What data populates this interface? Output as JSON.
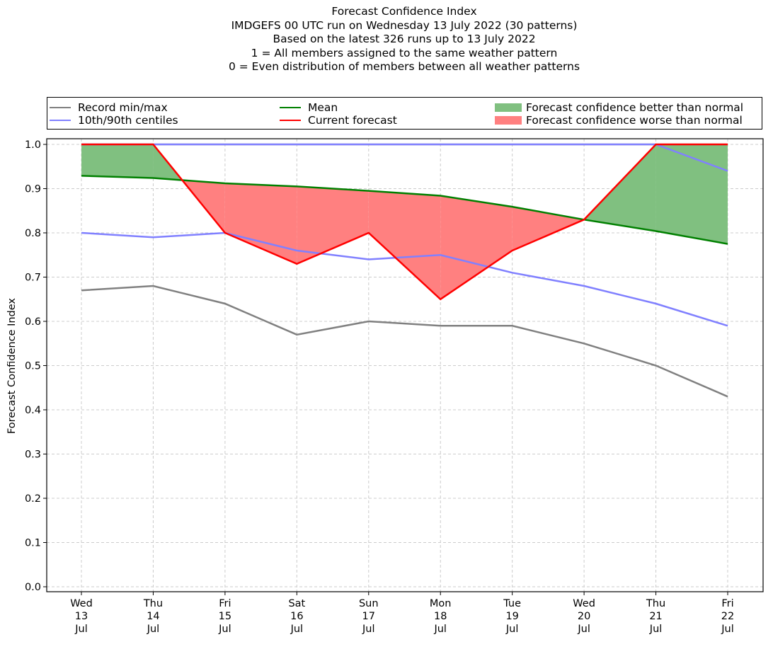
{
  "chart_data": {
    "type": "line",
    "title_lines": [
      "Forecast Confidence Index",
      "IMDGEFS 00 UTC run on Wednesday 13 July 2022 (30 patterns)",
      "Based on the latest 326 runs up to 13 July 2022",
      "1 = All members assigned to the same weather pattern",
      "0 = Even distribution of members between all weather patterns"
    ],
    "xlabel": "",
    "ylabel": "Forecast Confidence Index",
    "ylim": [
      0.0,
      1.0
    ],
    "yticks": [
      "0.0",
      "0.1",
      "0.2",
      "0.3",
      "0.4",
      "0.5",
      "0.6",
      "0.7",
      "0.8",
      "0.9",
      "1.0"
    ],
    "grid": true,
    "legend_placement": "top (above plot, 3 columns)",
    "categories": [
      {
        "day": "Wed",
        "date": "13",
        "month": "Jul"
      },
      {
        "day": "Thu",
        "date": "14",
        "month": "Jul"
      },
      {
        "day": "Fri",
        "date": "15",
        "month": "Jul"
      },
      {
        "day": "Sat",
        "date": "16",
        "month": "Jul"
      },
      {
        "day": "Sun",
        "date": "17",
        "month": "Jul"
      },
      {
        "day": "Mon",
        "date": "18",
        "month": "Jul"
      },
      {
        "day": "Tue",
        "date": "19",
        "month": "Jul"
      },
      {
        "day": "Wed",
        "date": "20",
        "month": "Jul"
      },
      {
        "day": "Thu",
        "date": "21",
        "month": "Jul"
      },
      {
        "day": "Fri",
        "date": "22",
        "month": "Jul"
      }
    ],
    "series": [
      {
        "name": "Record min",
        "legend_label": "Record min/max",
        "color": "#808080",
        "values": [
          0.67,
          0.68,
          0.64,
          0.57,
          0.6,
          0.59,
          0.59,
          0.55,
          0.5,
          0.43
        ]
      },
      {
        "name": "Record max",
        "color": "#808080",
        "values": [
          1.0,
          1.0,
          1.0,
          1.0,
          1.0,
          1.0,
          1.0,
          1.0,
          1.0,
          1.0
        ]
      },
      {
        "name": "10th centile",
        "legend_label": "10th/90th centiles",
        "color": "#8080ff",
        "values": [
          0.8,
          0.79,
          0.8,
          0.76,
          0.74,
          0.75,
          0.71,
          0.68,
          0.64,
          0.59
        ]
      },
      {
        "name": "90th centile",
        "color": "#8080ff",
        "values": [
          1.0,
          1.0,
          1.0,
          1.0,
          1.0,
          1.0,
          1.0,
          1.0,
          1.0,
          0.94
        ]
      },
      {
        "name": "Mean",
        "legend_label": "Mean",
        "color": "#008000",
        "values": [
          0.929,
          0.924,
          0.912,
          0.905,
          0.895,
          0.884,
          0.859,
          0.83,
          0.804,
          0.775
        ]
      },
      {
        "name": "Current forecast",
        "legend_label": "Current forecast",
        "color": "#ff0000",
        "values": [
          1.0,
          1.0,
          0.8,
          0.73,
          0.8,
          0.65,
          0.76,
          0.83,
          1.0,
          1.0
        ]
      }
    ],
    "fills": [
      {
        "name": "Forecast confidence better than normal",
        "color": "#80c080",
        "condition": "current > mean"
      },
      {
        "name": "Forecast confidence worse than normal",
        "color": "#ff8080",
        "condition": "current < mean"
      }
    ]
  },
  "legend": {
    "record": "Record min/max",
    "centiles": "10th/90th centiles",
    "mean": "Mean",
    "current": "Current forecast",
    "better": "Forecast confidence better than normal",
    "worse": "Forecast confidence worse than normal"
  }
}
